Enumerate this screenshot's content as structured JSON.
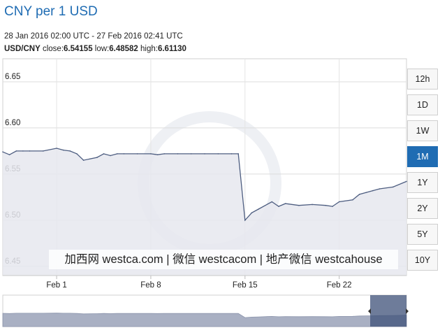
{
  "title": "CNY per 1 USD",
  "range_text": "28 Jan 2016 02:00 UTC - 27 Feb 2016 02:41 UTC",
  "quote": {
    "pair": "USD/CNY",
    "close_label": "close:",
    "close": "6.54155",
    "low_label": "low:",
    "low": "6.48582",
    "high_label": "high:",
    "high": "6.61130"
  },
  "timeframes": [
    "12h",
    "1D",
    "1W",
    "1M",
    "1Y",
    "2Y",
    "5Y",
    "10Y"
  ],
  "active_timeframe": "1M",
  "watermark_text": "加西网 westca.com | 微信 westcacom | 地产微信 westcahouse",
  "colors": {
    "accent": "#1f6cb3",
    "line": "#4d5d80",
    "area": "#e6e8ef",
    "navigator_fill": "#a9b0c3",
    "navigator_handle": "#3d5078"
  },
  "chart_data": {
    "type": "area",
    "title": "CNY per 1 USD",
    "xlabel": "",
    "ylabel": "",
    "xlim": [
      "2016-01-28",
      "2016-02-27"
    ],
    "ylim": [
      6.44,
      6.675
    ],
    "yticks": [
      6.45,
      6.5,
      6.55,
      6.6,
      6.65
    ],
    "ytick_labels": [
      "6.45",
      "6.50",
      "6.55",
      "6.60",
      "6.65"
    ],
    "xticks": [
      "2016-02-01",
      "2016-02-08",
      "2016-02-15",
      "2016-02-22"
    ],
    "xtick_labels": [
      "Feb 1",
      "Feb 8",
      "Feb 15",
      "Feb 22"
    ],
    "grid": true,
    "series": [
      {
        "x": [
          "2016-01-28",
          "2016-01-28 12:00",
          "2016-01-29",
          "2016-01-29 12:00",
          "2016-01-30",
          "2016-01-31",
          "2016-02-01",
          "2016-02-01 12:00",
          "2016-02-02",
          "2016-02-02 12:00",
          "2016-02-03",
          "2016-02-04",
          "2016-02-04 12:00",
          "2016-02-05",
          "2016-02-05 12:00",
          "2016-02-06",
          "2016-02-07",
          "2016-02-08",
          "2016-02-08 12:00",
          "2016-02-09",
          "2016-02-10",
          "2016-02-11",
          "2016-02-12",
          "2016-02-13",
          "2016-02-14",
          "2016-02-14 12:00",
          "2016-02-15",
          "2016-02-15 12:00",
          "2016-02-16",
          "2016-02-17",
          "2016-02-17 12:00",
          "2016-02-18",
          "2016-02-19",
          "2016-02-20",
          "2016-02-21",
          "2016-02-21 12:00",
          "2016-02-22",
          "2016-02-23",
          "2016-02-23 12:00",
          "2016-02-24",
          "2016-02-24 12:00",
          "2016-02-25",
          "2016-02-26",
          "2016-02-27"
        ],
        "values": [
          6.574,
          6.571,
          6.575,
          6.575,
          6.575,
          6.575,
          6.578,
          6.576,
          6.575,
          6.572,
          6.565,
          6.568,
          6.572,
          6.57,
          6.572,
          6.572,
          6.572,
          6.572,
          6.571,
          6.572,
          6.572,
          6.572,
          6.572,
          6.572,
          6.572,
          6.572,
          6.5,
          6.508,
          6.512,
          6.52,
          6.515,
          6.518,
          6.516,
          6.517,
          6.516,
          6.515,
          6.52,
          6.522,
          6.528,
          6.53,
          6.532,
          6.534,
          6.536,
          6.542
        ]
      }
    ]
  }
}
